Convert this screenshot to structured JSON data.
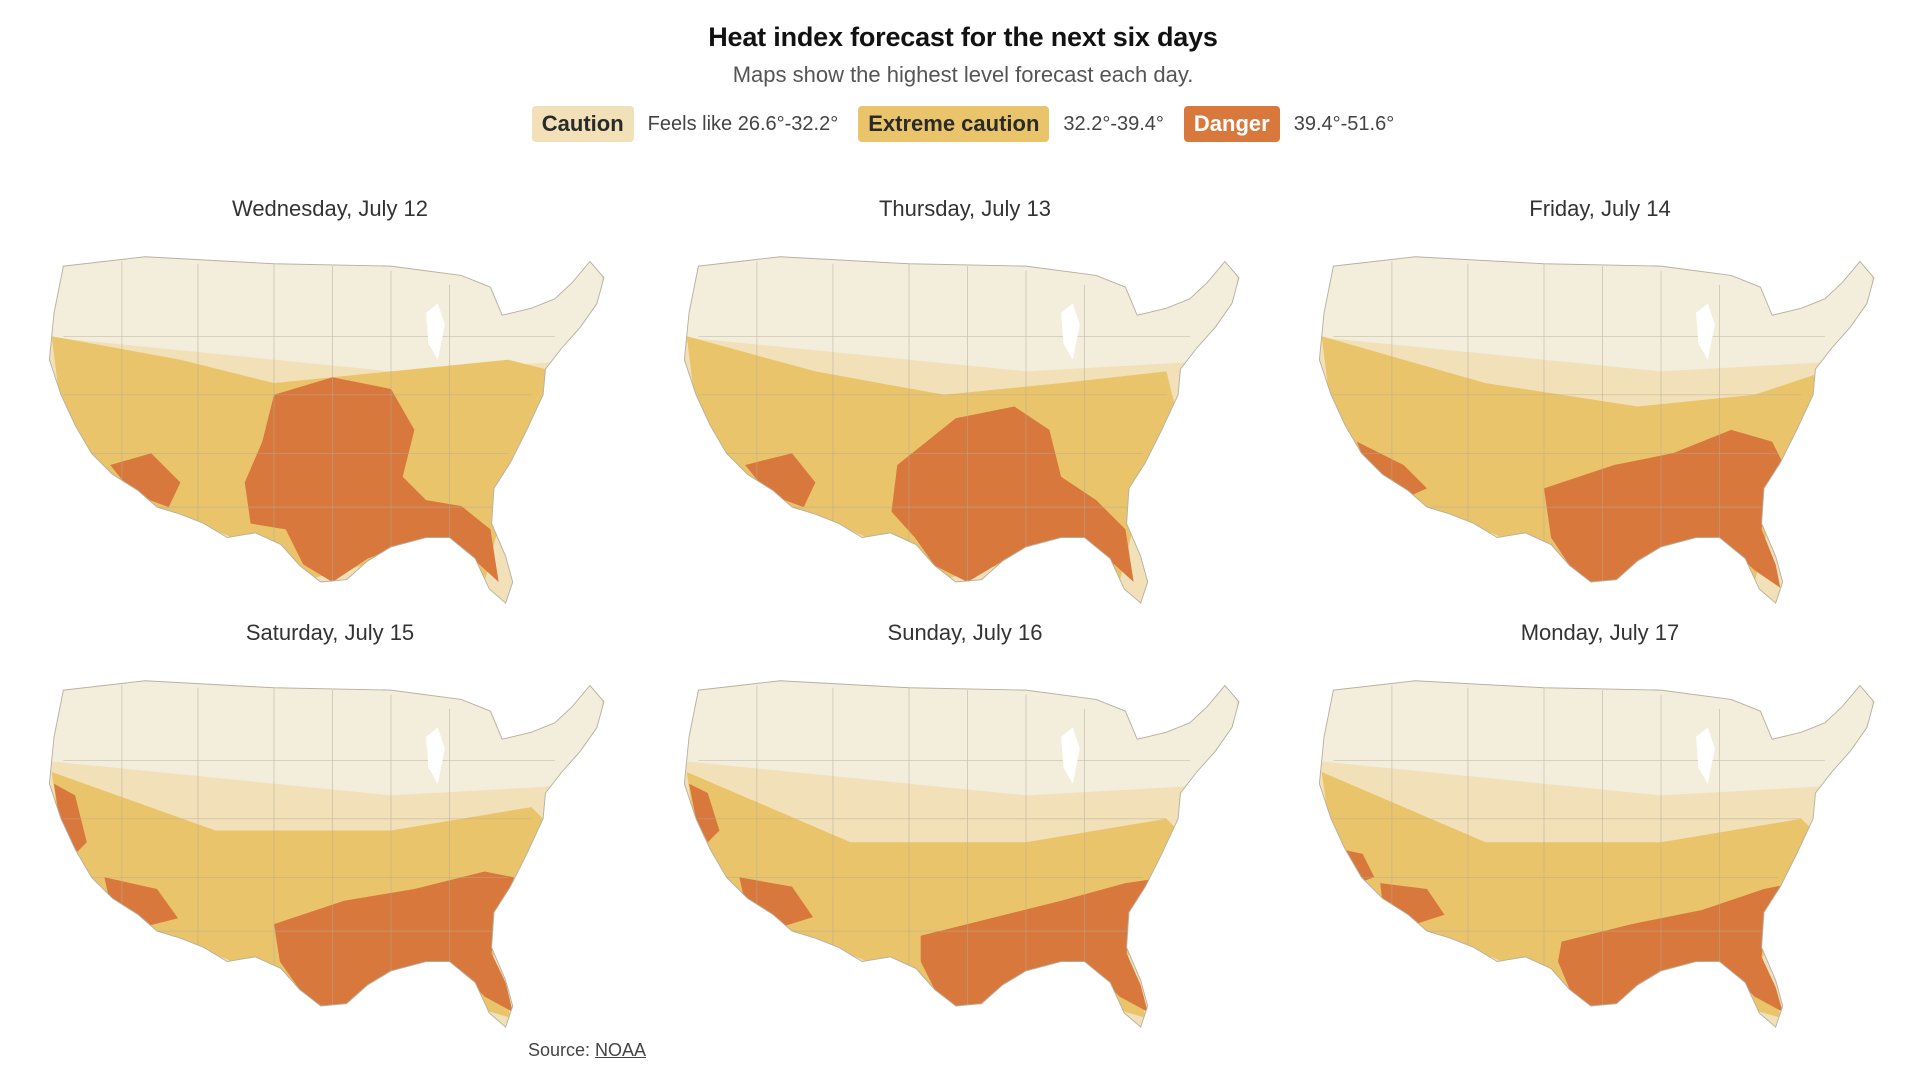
{
  "header": {
    "title": "Heat index forecast for the next six days",
    "subtitle": "Maps show the highest level forecast each day."
  },
  "legend": [
    {
      "label": "Caution",
      "range": "Feels like 26.6°-32.2°",
      "color": "#f1e0b8"
    },
    {
      "label": "Extreme caution",
      "range": "32.2°-39.4°",
      "color": "#e9c46a"
    },
    {
      "label": "Danger",
      "range": "39.4°-51.6°",
      "color": "#d9783c"
    }
  ],
  "colors": {
    "no_alert": "#f3eee2",
    "caution": "#f1e0b8",
    "extreme_caution": "#e9c46a",
    "danger": "#d9783c",
    "borders": "#b3ab9a"
  },
  "maps": [
    {
      "day": "Wednesday, July 12"
    },
    {
      "day": "Thursday, July 13"
    },
    {
      "day": "Friday, July 14"
    },
    {
      "day": "Saturday, July 15"
    },
    {
      "day": "Sunday, July 16"
    },
    {
      "day": "Monday, July 17"
    }
  ],
  "source": {
    "prefix": "Source: ",
    "link": "NOAA"
  }
}
